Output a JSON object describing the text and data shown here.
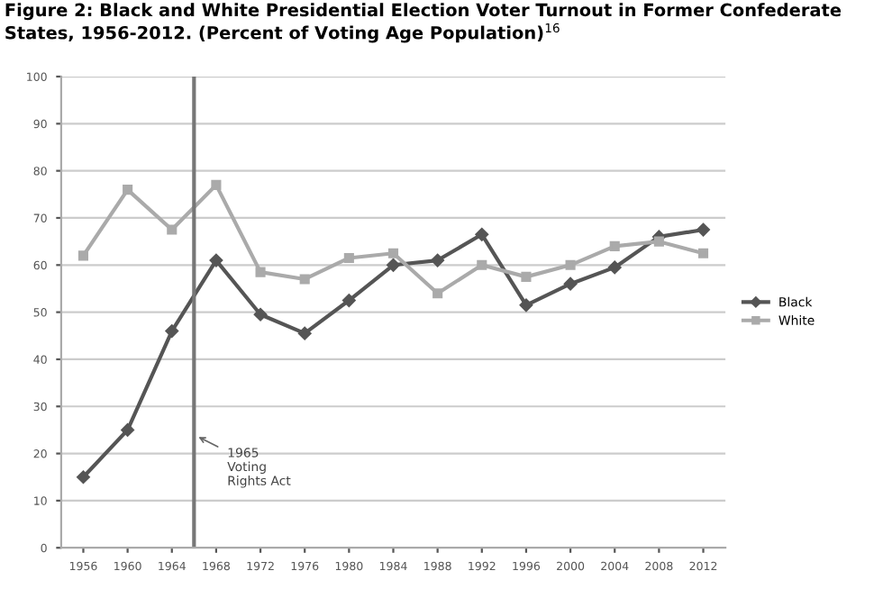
{
  "chart_data": {
    "type": "line",
    "title": "Figure 2: Black and White Presidential Election Voter Turnout in Former Confederate States, 1956-2012. (Percent of Voting Age Population)$^{16}$",
    "x": [
      1956,
      1960,
      1964,
      1968,
      1972,
      1976,
      1980,
      1984,
      1988,
      1992,
      1996,
      2000,
      2004,
      2008,
      2012
    ],
    "series": [
      {
        "name": "Black",
        "color": "#555555",
        "marker": "diamond",
        "values": [
          15,
          25,
          46,
          61,
          49.5,
          45.5,
          52.5,
          60,
          61,
          66.5,
          51.5,
          56,
          59.5,
          66,
          67.5
        ]
      },
      {
        "name": "White",
        "color": "#aaaaaa",
        "marker": "square",
        "values": [
          62,
          76,
          67.5,
          77,
          58.5,
          57,
          61.5,
          62.5,
          54,
          60,
          57.5,
          60,
          64,
          65,
          62.5
        ]
      }
    ],
    "xlim": [
      1954,
      2014
    ],
    "xticks": [
      1956,
      1960,
      1964,
      1968,
      1972,
      1976,
      1980,
      1984,
      1988,
      1992,
      1996,
      2000,
      2004,
      2008,
      2012
    ],
    "ylim": [
      0,
      100
    ],
    "yticks": [
      0,
      10,
      20,
      30,
      40,
      50,
      60,
      70,
      80,
      90,
      100
    ],
    "grid": "y",
    "legend": "right",
    "ref_lines": [
      {
        "axis": "x",
        "value": 1966,
        "color": "#777777"
      }
    ],
    "annotations": [
      {
        "text": "1965\nVoting\nRights Act",
        "x": 1966,
        "y": 24
      }
    ]
  }
}
